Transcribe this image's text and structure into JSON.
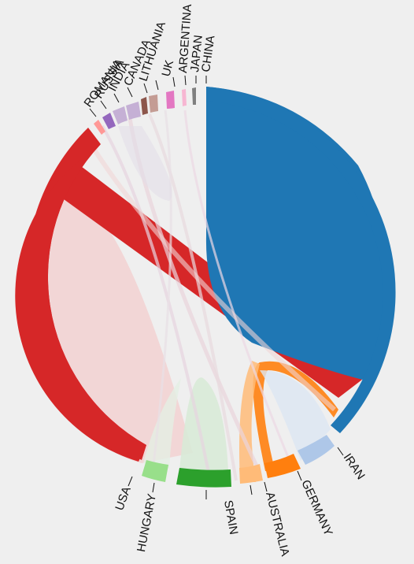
{
  "countries": [
    {
      "id": "china",
      "label": "CHINA",
      "color": "#1f77b4"
    },
    {
      "id": "iran",
      "label": "IRAN",
      "color": "#aec7e8"
    },
    {
      "id": "germany",
      "label": "GERMANY",
      "color": "#ff7f0e"
    },
    {
      "id": "australia",
      "label": "AUSTRALIA",
      "color": "#ffbb78"
    },
    {
      "id": "spain",
      "label": "SPAIN",
      "color": "#2ca02c"
    },
    {
      "id": "hungary",
      "label": "HUNGARY",
      "color": "#98df8a"
    },
    {
      "id": "usa",
      "label": "USA",
      "color": "#d62728"
    },
    {
      "id": "romania",
      "label": "ROMANIA",
      "color": "#ff9896"
    },
    {
      "id": "russia",
      "label": "RUSSIA",
      "color": "#9467bd"
    },
    {
      "id": "india",
      "label": "INDIA",
      "color": "#c5b0d5"
    },
    {
      "id": "canada",
      "label": "CANADA",
      "color": "#c5b0d5"
    },
    {
      "id": "lithuania",
      "label": "LITHUANIA",
      "color": "#8c564b"
    },
    {
      "id": "uk",
      "label": "UK",
      "color": "#c49c94"
    },
    {
      "id": "argentina",
      "label": "ARGENTINA",
      "color": "#e377c2"
    },
    {
      "id": "japan",
      "label": "JAPAN",
      "color": "#f7b6d2"
    },
    {
      "id": "china_small",
      "label": "",
      "color": "#7f7f7f"
    }
  ]
}
